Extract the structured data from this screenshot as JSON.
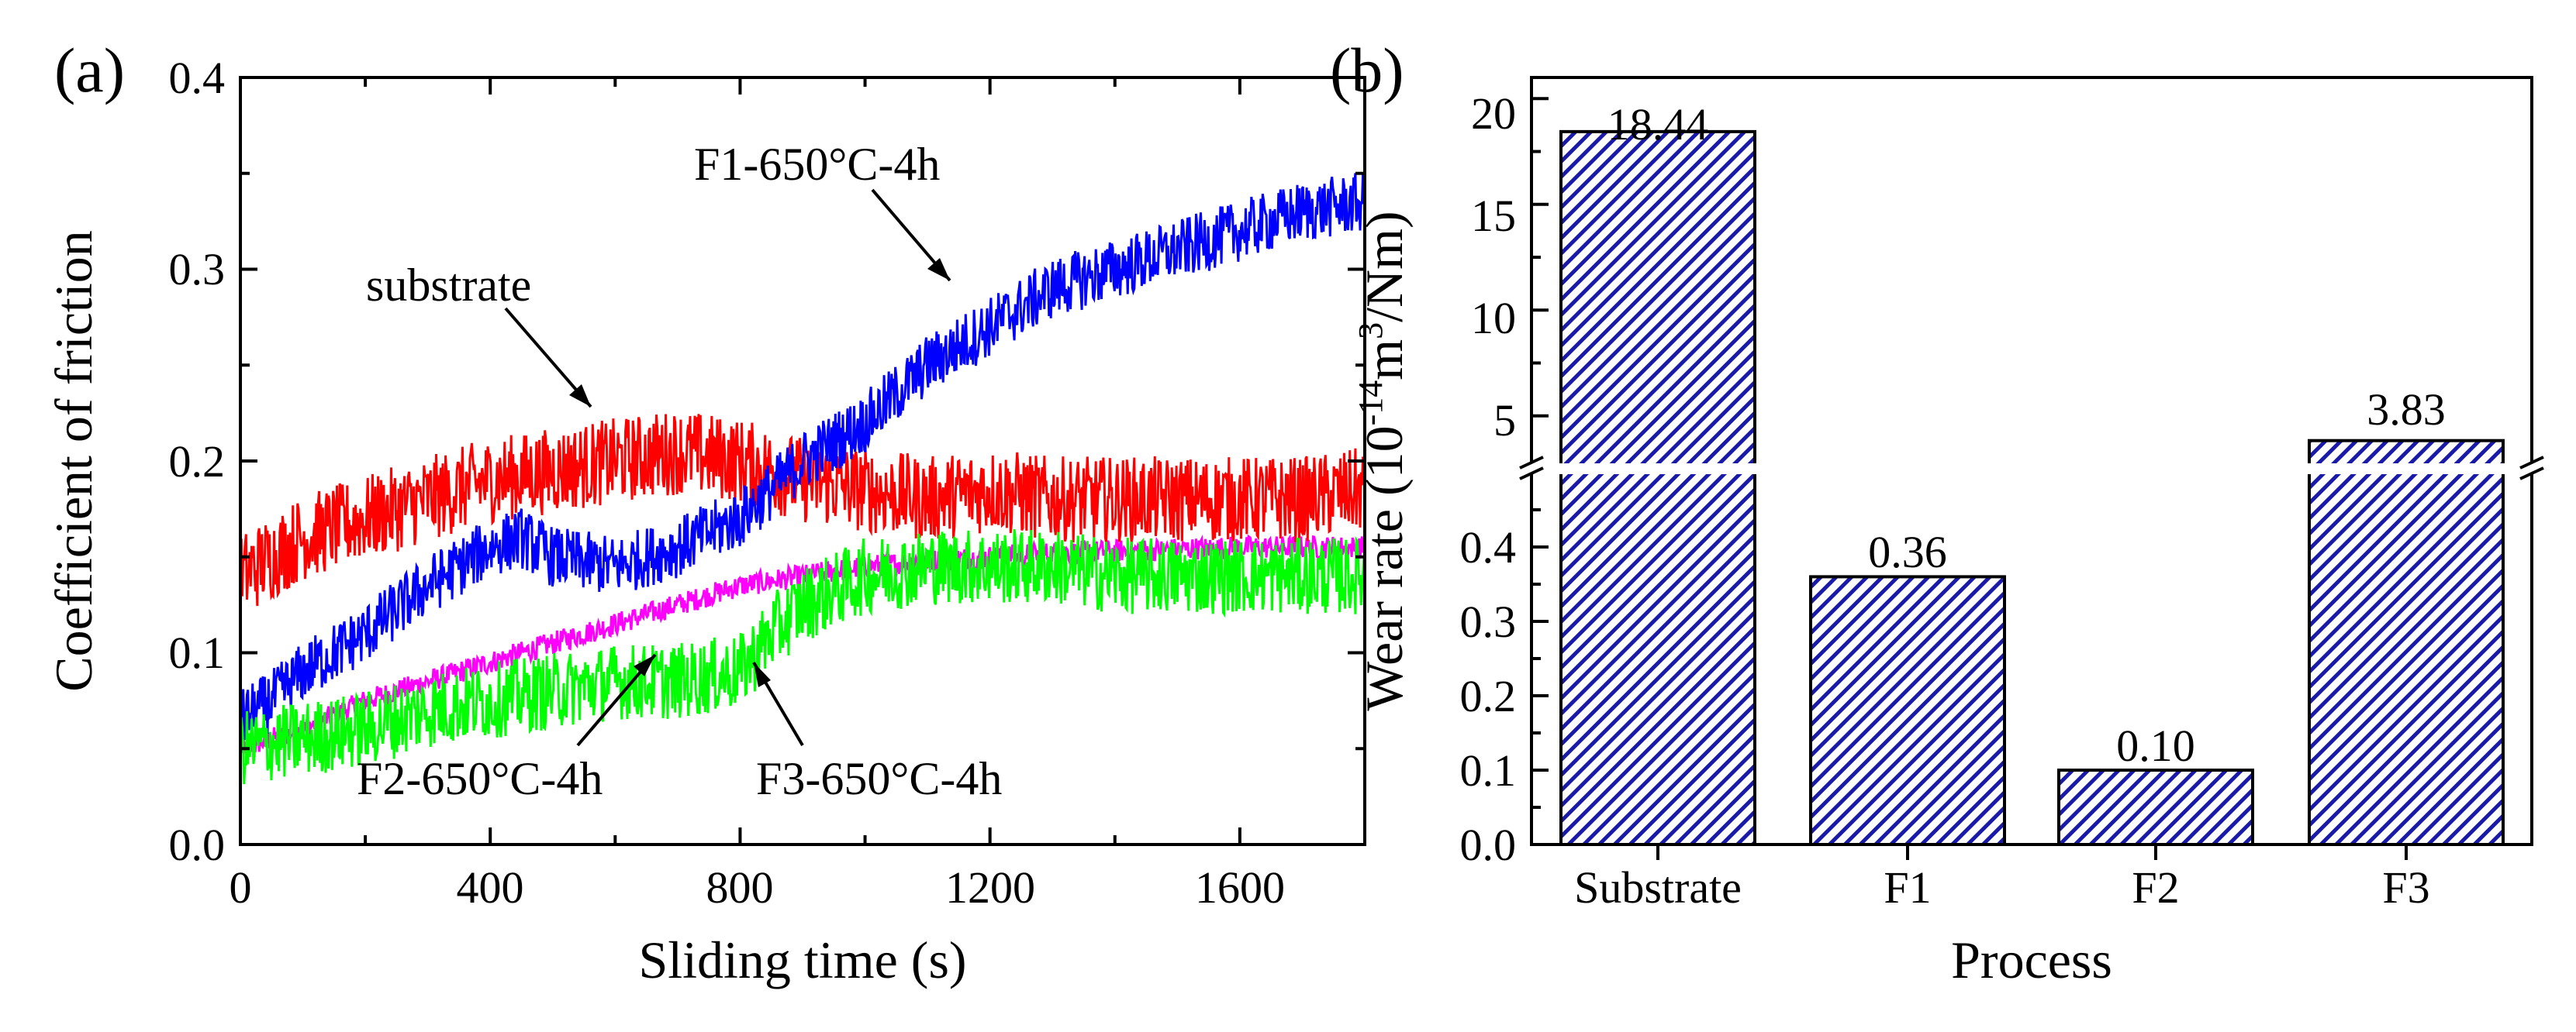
{
  "chart_data": [
    {
      "type": "line",
      "panel_label": "(a)",
      "xlabel": "Sliding time (s)",
      "ylabel": "Coefficient of friction",
      "xlim": [
        0,
        1800
      ],
      "ylim": [
        0,
        0.4
      ],
      "xticks": [
        "0",
        "400",
        "800",
        "1200",
        "1600"
      ],
      "yticks": [
        "0.0",
        "0.1",
        "0.2",
        "0.3",
        "0.4"
      ],
      "series": [
        {
          "name": "substrate",
          "label": "substrate",
          "color": "#ff0000",
          "x": [
            0,
            50,
            100,
            200,
            300,
            400,
            500,
            600,
            700,
            800,
            900,
            1000,
            1100,
            1200,
            1300,
            1400,
            1500,
            1600,
            1700,
            1800
          ],
          "y": [
            0.14,
            0.15,
            0.16,
            0.17,
            0.18,
            0.19,
            0.195,
            0.2,
            0.205,
            0.2,
            0.19,
            0.185,
            0.18,
            0.185,
            0.18,
            0.18,
            0.18,
            0.18,
            0.18,
            0.185
          ]
        },
        {
          "name": "F1-650°C-4h",
          "label": "F1-650°C-4h",
          "color": "#0000ff",
          "x": [
            0,
            50,
            100,
            200,
            300,
            400,
            450,
            500,
            600,
            700,
            800,
            900,
            1000,
            1100,
            1200,
            1300,
            1400,
            1500,
            1600,
            1700,
            1800
          ],
          "y": [
            0.065,
            0.075,
            0.09,
            0.11,
            0.135,
            0.155,
            0.16,
            0.15,
            0.145,
            0.155,
            0.17,
            0.2,
            0.22,
            0.25,
            0.27,
            0.29,
            0.3,
            0.31,
            0.32,
            0.33,
            0.335
          ]
        },
        {
          "name": "F2-650°C-4h",
          "label": "F2-650°C-4h",
          "color": "#ff00ff",
          "x": [
            0,
            100,
            200,
            300,
            400,
            500,
            600,
            700,
            800,
            900,
            1000,
            1100,
            1200,
            1300,
            1400,
            1500,
            1600,
            1700,
            1800
          ],
          "y": [
            0.05,
            0.06,
            0.075,
            0.085,
            0.095,
            0.105,
            0.115,
            0.125,
            0.135,
            0.14,
            0.145,
            0.148,
            0.15,
            0.152,
            0.153,
            0.154,
            0.155,
            0.155,
            0.155
          ]
        },
        {
          "name": "F3-650°C-4h",
          "label": "F3-650°C-4h",
          "color": "#00ff00",
          "x": [
            0,
            100,
            200,
            300,
            400,
            500,
            600,
            700,
            800,
            850,
            900,
            1000,
            1100,
            1200,
            1300,
            1400,
            1500,
            1600,
            1700,
            1800
          ],
          "y": [
            0.05,
            0.055,
            0.06,
            0.07,
            0.075,
            0.08,
            0.085,
            0.085,
            0.09,
            0.11,
            0.125,
            0.14,
            0.145,
            0.145,
            0.145,
            0.14,
            0.14,
            0.14,
            0.14,
            0.14
          ]
        }
      ]
    },
    {
      "type": "bar",
      "panel_label": "(b)",
      "xlabel": "Process",
      "ylabel_main": "Wear rate (10",
      "ylabel_sup1": "-14",
      "ylabel_mid": "m",
      "ylabel_sup2": "3",
      "ylabel_end": "/Nm)",
      "categories": [
        "Substrate",
        "F1",
        "F2",
        "F3"
      ],
      "values": [
        18.44,
        0.36,
        0.1,
        3.83
      ],
      "value_labels": [
        "18.44",
        "0.36",
        "0.10",
        "3.83"
      ],
      "axis_break": true,
      "lower_ylim": [
        0,
        0.5
      ],
      "upper_ylim": [
        2.5,
        21
      ],
      "yticks_lower": [
        "0.0",
        "0.1",
        "0.2",
        "0.3",
        "0.4"
      ],
      "yticks_upper": [
        "5",
        "10",
        "15",
        "20"
      ],
      "bar_fill": "hatch",
      "bar_color": "#1a1aa8"
    }
  ]
}
